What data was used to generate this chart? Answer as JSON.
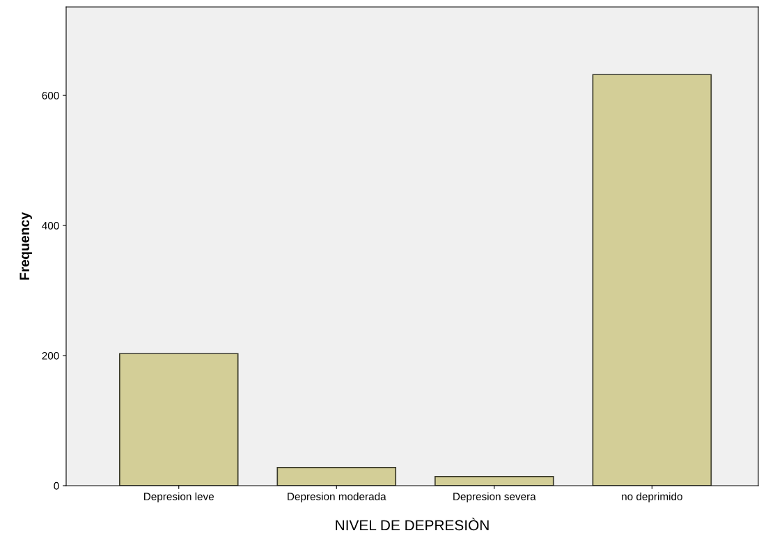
{
  "chart_data": {
    "type": "bar",
    "xlabel": "NIVEL DE DEPRESIÒN",
    "ylabel": "Frequency",
    "categories": [
      "Depresion leve",
      "Depresion moderada",
      "Depresion severa",
      "no deprimido"
    ],
    "values": [
      203,
      28,
      14,
      632
    ],
    "color": "#d3ce97",
    "ylim": [
      0,
      736
    ],
    "yticks": [
      0,
      200,
      400,
      600
    ],
    "grid": false
  }
}
